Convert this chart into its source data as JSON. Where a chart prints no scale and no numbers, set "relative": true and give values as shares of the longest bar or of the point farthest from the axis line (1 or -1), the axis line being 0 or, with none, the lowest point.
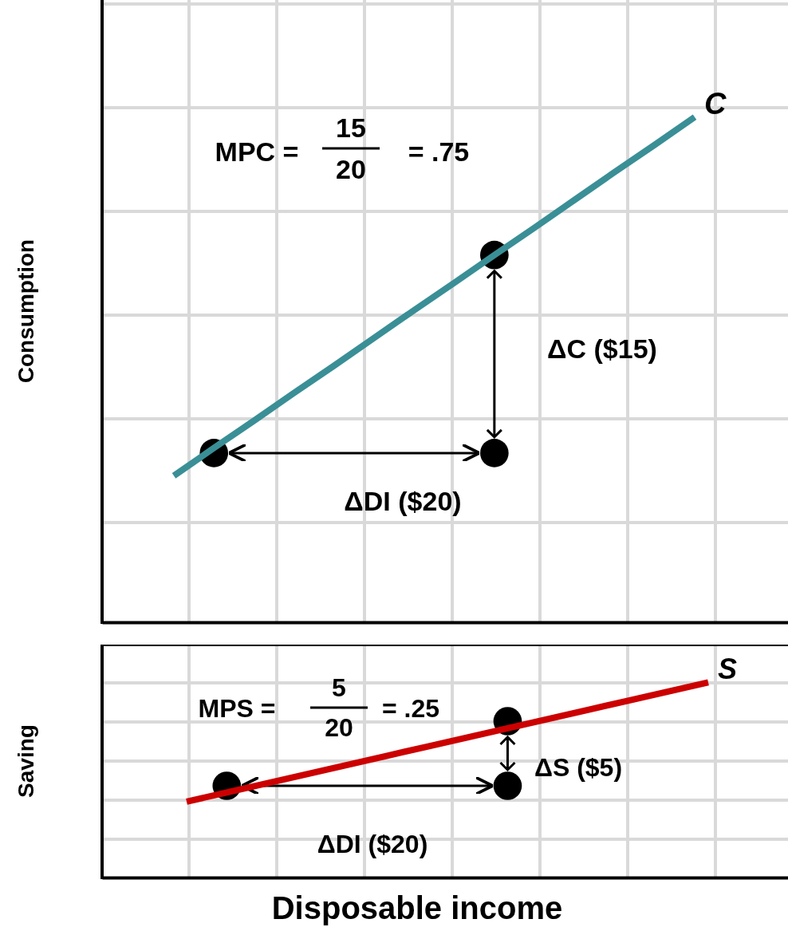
{
  "chart_data": [
    {
      "type": "line",
      "relative": true,
      "ylabel": "Consumption",
      "grid": true,
      "categories": [
        null,
        null,
        null,
        null,
        null,
        null,
        null,
        null,
        null,
        null,
        null,
        null,
        null,
        null
      ],
      "series": [
        {
          "name": "C",
          "color": "#3a8f96",
          "values": [
            0.29,
            0.345,
            0.399,
            0.454,
            0.508,
            0.563,
            0.618,
            0.672,
            0.727,
            0.781,
            0.836,
            0.891,
            0.945,
            1.0
          ]
        },
        {
          "type": "line",
          "marker": "circle",
          "color": "#000000",
          "values": [
            null,
            0.335,
            null,
            null,
            null,
            null,
            null,
            null,
            0.335,
            null,
            null,
            null,
            null,
            null
          ]
        },
        {
          "type": "line",
          "marker": "circle",
          "color": "#000000",
          "values": [
            null,
            null,
            null,
            null,
            null,
            null,
            null,
            null,
            0.727,
            null,
            null,
            null,
            null,
            null
          ]
        }
      ],
      "annotations": [
        "MPC =",
        "15",
        "20",
        "= .75",
        "ΔC ($15)",
        "ΔDI ($20)"
      ]
    },
    {
      "type": "line",
      "relative": true,
      "ylabel": "Saving",
      "xlabel": "Disposable income",
      "grid": true,
      "categories": [
        null,
        null,
        null,
        null,
        null,
        null,
        null,
        null,
        null,
        null,
        null,
        null,
        null,
        null
      ],
      "series": [
        {
          "name": "S",
          "color": "#cc0000",
          "values": [
            0.389,
            0.436,
            0.483,
            0.53,
            0.577,
            0.624,
            0.671,
            0.718,
            0.765,
            0.812,
            0.859,
            0.906,
            0.953,
            1.0
          ]
        },
        {
          "type": "line",
          "marker": "circle",
          "color": "#000000",
          "values": [
            null,
            0.47,
            null,
            null,
            null,
            null,
            null,
            null,
            0.47,
            null,
            null,
            null,
            null,
            null
          ]
        },
        {
          "type": "line",
          "marker": "circle",
          "color": "#000000",
          "values": [
            null,
            null,
            null,
            null,
            null,
            null,
            null,
            null,
            0.801,
            null,
            null,
            null,
            null,
            null
          ]
        }
      ],
      "annotations": [
        "MPS =",
        "5",
        "20",
        "= .25",
        "ΔS ($5)",
        "ΔDI ($20)"
      ]
    }
  ]
}
